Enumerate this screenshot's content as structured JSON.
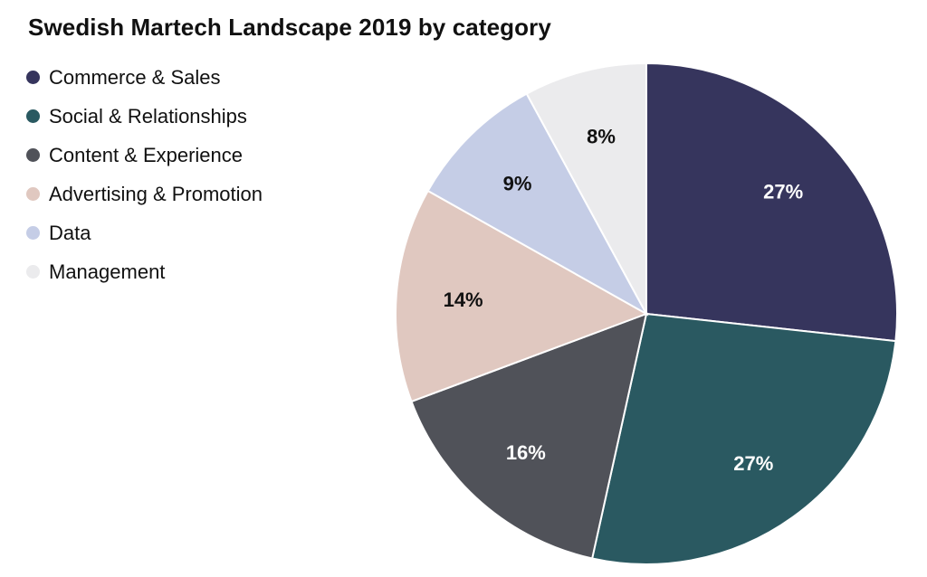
{
  "chart_data": {
    "type": "pie",
    "title": "Swedish Martech Landscape 2019 by category",
    "legend_position": "top-left",
    "slices": [
      {
        "label": "Commerce & Sales",
        "value": 27,
        "value_label": "27%",
        "color": "#36355d",
        "label_color": "#ffffff"
      },
      {
        "label": "Social & Relationships",
        "value": 27,
        "value_label": "27%",
        "color": "#2a5961",
        "label_color": "#ffffff"
      },
      {
        "label": "Content & Experience",
        "value": 16,
        "value_label": "16%",
        "color": "#505259",
        "label_color": "#ffffff"
      },
      {
        "label": "Advertising & Promotion",
        "value": 14,
        "value_label": "14%",
        "color": "#e0c8c0",
        "label_color": "#111111"
      },
      {
        "label": "Data",
        "value": 9,
        "value_label": "9%",
        "color": "#c5cde6",
        "label_color": "#111111"
      },
      {
        "label": "Management",
        "value": 8,
        "value_label": "8%",
        "color": "#ebebed",
        "label_color": "#111111"
      }
    ]
  }
}
